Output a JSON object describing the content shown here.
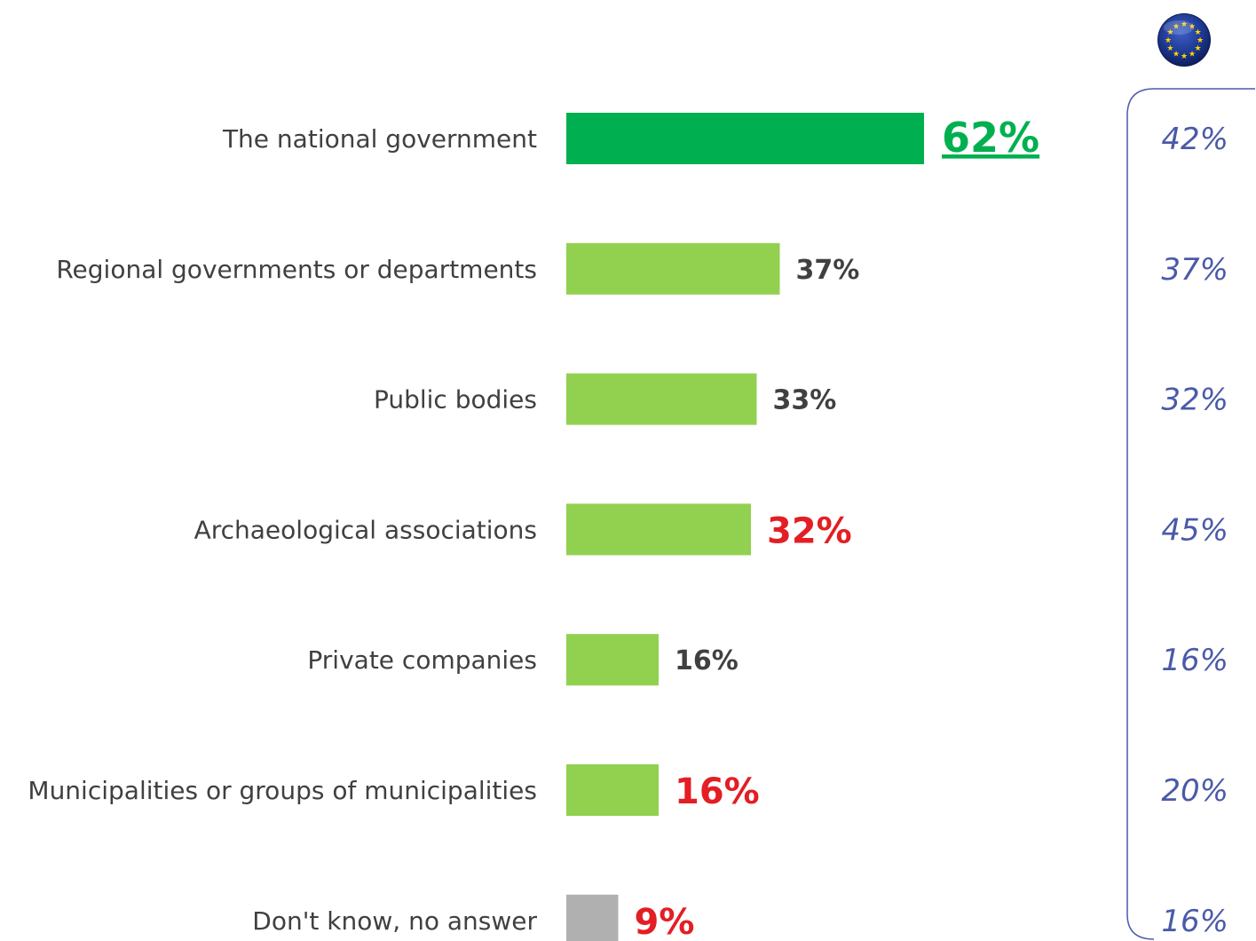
{
  "chart_data": {
    "type": "bar",
    "orientation": "horizontal",
    "categories": [
      "The national government",
      "Regional governments or departments",
      "Public bodies",
      "Archaeological associations",
      "Private companies",
      "Municipalities or groups of municipalities",
      "Don't know, no answer"
    ],
    "values": [
      62,
      37,
      33,
      32,
      16,
      16,
      9
    ],
    "value_labels": [
      "62%",
      "37%",
      "33%",
      "32%",
      "16%",
      "16%",
      "9%"
    ],
    "bar_colors": [
      "#00b050",
      "#92d050",
      "#92d050",
      "#92d050",
      "#92d050",
      "#92d050",
      "#b0b0b0"
    ],
    "value_label_colors": [
      "#00b050",
      "#404040",
      "#404040",
      "#e31e24",
      "#404040",
      "#e31e24",
      "#e31e24"
    ],
    "value_label_styles": [
      "large-underlined",
      "normal",
      "normal",
      "large",
      "normal",
      "large",
      "large"
    ],
    "eu_average": {
      "icon": "eu-flag-icon",
      "values": [
        42,
        37,
        32,
        45,
        16,
        20,
        16
      ],
      "labels": [
        "42%",
        "37%",
        "32%",
        "45%",
        "16%",
        "20%",
        "16%"
      ],
      "color": "#4a5aa8"
    },
    "xlim": [
      0,
      100
    ],
    "grid": false,
    "legend": "none"
  }
}
